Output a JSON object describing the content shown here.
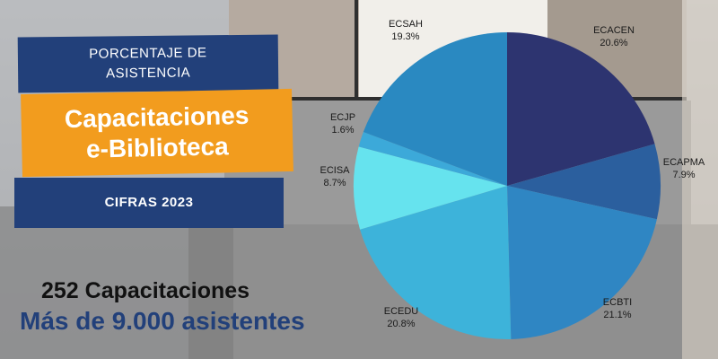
{
  "banner": {
    "line1": "PORCENTAJE DE",
    "line2": "ASISTENCIA",
    "title1": "Capacitaciones",
    "title2": "e-Biblioteca",
    "subtitle": "CIFRAS 2023"
  },
  "stats": {
    "trainings": "252 Capacitaciones",
    "attendees": "Más de 9.000 asistentes"
  },
  "colors": {
    "banner_blue": "#22407a",
    "banner_orange": "#f29c1e"
  },
  "chart_data": {
    "type": "pie",
    "slices": [
      {
        "label": "ECACEN",
        "value": 20.6,
        "display": "20.6%",
        "color": "#2d3470"
      },
      {
        "label": "ECAPMA",
        "value": 7.9,
        "display": "7.9%",
        "color": "#2b5f9e"
      },
      {
        "label": "ECBTI",
        "value": 21.1,
        "display": "21.1%",
        "color": "#2f86c3"
      },
      {
        "label": "ECEDU",
        "value": 20.8,
        "display": "20.8%",
        "color": "#3db3da"
      },
      {
        "label": "ECISA",
        "value": 8.7,
        "display": "8.7%",
        "color": "#66e3ee"
      },
      {
        "label": "ECJP",
        "value": 1.6,
        "display": "1.6%",
        "color": "#3ca9d9"
      },
      {
        "label": "ECSAH",
        "value": 19.3,
        "display": "19.3%",
        "color": "#2a89c1"
      }
    ]
  }
}
